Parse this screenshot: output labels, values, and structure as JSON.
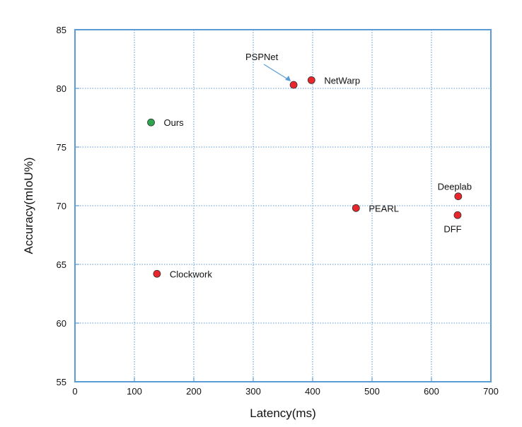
{
  "chart_data": {
    "type": "scatter",
    "xlabel": "Latency(ms)",
    "ylabel": "Accuracy(mIoU%)",
    "xlim": [
      0,
      700
    ],
    "ylim": [
      55,
      85
    ],
    "xticks": [
      0,
      100,
      200,
      300,
      400,
      500,
      600,
      700
    ],
    "yticks": [
      55,
      60,
      65,
      70,
      75,
      80,
      85
    ],
    "grid": true,
    "colors": {
      "frame": "#5b9bd5",
      "grid": "#5b9bd5",
      "method": "#e8262b",
      "ours": "#2ea44f"
    },
    "points": [
      {
        "label": "Ours",
        "x": 128,
        "y": 77.1,
        "highlight": true,
        "label_side": "right"
      },
      {
        "label": "PSPNet",
        "x": 368,
        "y": 80.3,
        "highlight": false,
        "label_side": "callout"
      },
      {
        "label": "NetWarp",
        "x": 398,
        "y": 80.7,
        "highlight": false,
        "label_side": "right"
      },
      {
        "label": "PEARL",
        "x": 473,
        "y": 69.8,
        "highlight": false,
        "label_side": "right"
      },
      {
        "label": "Deeplab",
        "x": 645,
        "y": 70.8,
        "highlight": false,
        "label_side": "above"
      },
      {
        "label": "DFF",
        "x": 644,
        "y": 69.2,
        "highlight": false,
        "label_side": "below"
      },
      {
        "label": "Clockwork",
        "x": 138,
        "y": 64.2,
        "highlight": false,
        "label_side": "right"
      }
    ]
  }
}
